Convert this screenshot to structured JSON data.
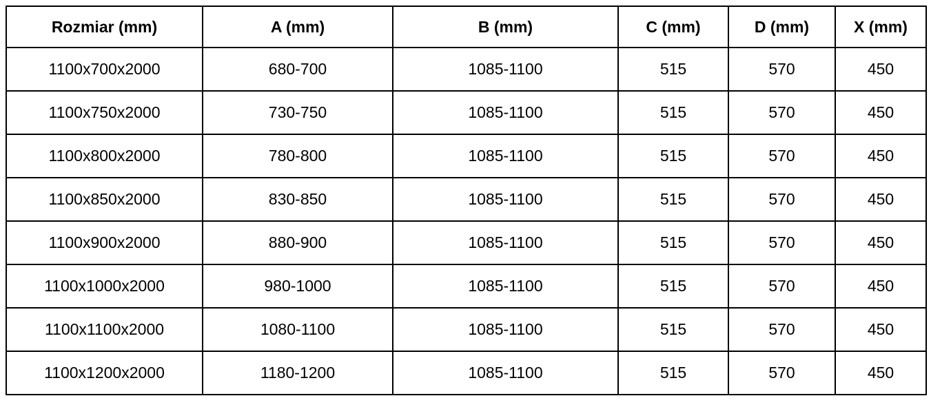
{
  "colors": {
    "border": "#000000",
    "text": "#000000",
    "background": "#ffffff"
  },
  "table": {
    "columns": [
      "Rozmiar (mm)",
      "A (mm)",
      "B (mm)",
      "C (mm)",
      "D (mm)",
      "X (mm)"
    ],
    "rows": [
      [
        "1100x700x2000",
        "680-700",
        "1085-1100",
        "515",
        "570",
        "450"
      ],
      [
        "1100x750x2000",
        "730-750",
        "1085-1100",
        "515",
        "570",
        "450"
      ],
      [
        "1100x800x2000",
        "780-800",
        "1085-1100",
        "515",
        "570",
        "450"
      ],
      [
        "1100x850x2000",
        "830-850",
        "1085-1100",
        "515",
        "570",
        "450"
      ],
      [
        "1100x900x2000",
        "880-900",
        "1085-1100",
        "515",
        "570",
        "450"
      ],
      [
        "1100x1000x2000",
        "980-1000",
        "1085-1100",
        "515",
        "570",
        "450"
      ],
      [
        "1100x1100x2000",
        "1080-1100",
        "1085-1100",
        "515",
        "570",
        "450"
      ],
      [
        "1100x1200x2000",
        "1180-1200",
        "1085-1100",
        "515",
        "570",
        "450"
      ]
    ]
  }
}
